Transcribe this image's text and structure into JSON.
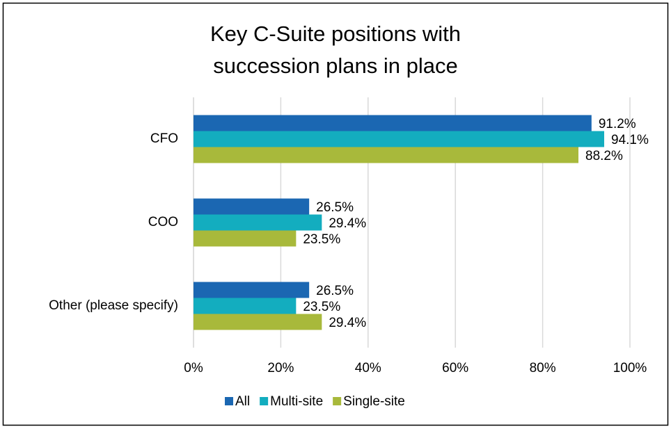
{
  "chart_data": {
    "type": "hbar",
    "title": "Key C-Suite positions with succession plans in place",
    "categories": [
      "CFO",
      "COO",
      "Other (please specify)"
    ],
    "series": [
      {
        "name": "All",
        "color": "#1b67b2",
        "values": [
          91.2,
          26.5,
          26.5
        ],
        "value_labels": [
          "91.2%",
          "26.5%",
          "26.5%"
        ]
      },
      {
        "name": "Multi-site",
        "color": "#13adbf",
        "values": [
          94.1,
          29.4,
          23.5
        ],
        "value_labels": [
          "94.1%",
          "29.4%",
          "23.5%"
        ]
      },
      {
        "name": "Single-site",
        "color": "#a8b93b",
        "values": [
          88.2,
          23.5,
          29.4
        ],
        "value_labels": [
          "88.2%",
          "23.5%",
          "29.4%"
        ]
      }
    ],
    "xlim": [
      0,
      100
    ],
    "xticks": [
      {
        "value": 0,
        "label": "0%"
      },
      {
        "value": 20,
        "label": "20%"
      },
      {
        "value": 40,
        "label": "40%"
      },
      {
        "value": 60,
        "label": "60%"
      },
      {
        "value": 80,
        "label": "80%"
      },
      {
        "value": 100,
        "label": "100%"
      }
    ],
    "grid": true,
    "legend": "bottom"
  }
}
